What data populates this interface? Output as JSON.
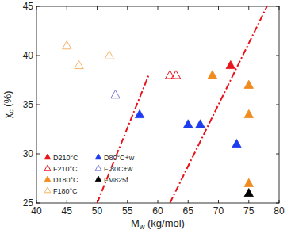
{
  "chart_data": {
    "type": "scatter",
    "x_label": "Mw (kg/mol)",
    "y_label": "χc (%)",
    "xlim": [
      40,
      80
    ],
    "xticks": [
      40,
      45,
      50,
      55,
      60,
      65,
      70,
      75,
      80
    ],
    "ylim": [
      25,
      45
    ],
    "yticks": [
      25,
      30,
      35,
      40,
      45
    ],
    "legend": "lower left",
    "series": [
      {
        "name": "D210°C",
        "color": "#e8141c",
        "marker": "triangle",
        "x": [
          72
        ],
        "values": [
          39
        ]
      },
      {
        "name": "F210°C",
        "color": "#e8141c",
        "marker": "triangle-open",
        "x": [
          62,
          63
        ],
        "values": [
          38,
          38
        ]
      },
      {
        "name": "D180°C",
        "color": "#f08c1e",
        "marker": "triangle",
        "x": [
          69,
          75,
          75,
          75
        ],
        "values": [
          38,
          37,
          34,
          27
        ]
      },
      {
        "name": "F180°C",
        "color": "#f6b46a",
        "marker": "triangle-open",
        "x": [
          45,
          47,
          52
        ],
        "values": [
          41,
          39,
          40
        ]
      },
      {
        "name": "D80°C+w",
        "color": "#1d3cf0",
        "marker": "triangle",
        "x": [
          57,
          65,
          67,
          73
        ],
        "values": [
          34,
          33,
          33,
          31
        ]
      },
      {
        "name": "F 80C+w",
        "color": "#7a7ae0",
        "marker": "triangle-open",
        "x": [
          53
        ],
        "values": [
          36
        ]
      },
      {
        "name": "FM825f",
        "color": "#000000",
        "marker": "triangle",
        "x": [
          75
        ],
        "values": [
          26
        ]
      },
      {
        "type": "line",
        "color": "#e8141c",
        "line_style": "dashdot",
        "x": [
          50,
          58.5
        ],
        "values": [
          25,
          38
        ]
      },
      {
        "type": "line",
        "color": "#e8141c",
        "line_style": "dashdot",
        "x": [
          62,
          78
        ],
        "values": [
          25,
          45
        ]
      }
    ]
  }
}
